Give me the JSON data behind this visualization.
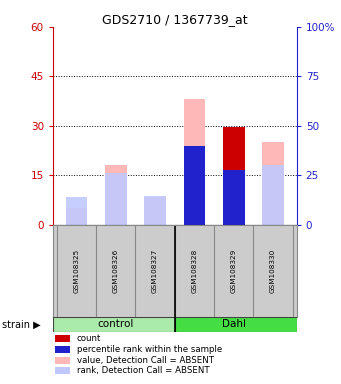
{
  "title": "GDS2710 / 1367739_at",
  "samples": [
    "GSM108325",
    "GSM108326",
    "GSM108327",
    "GSM108328",
    "GSM108329",
    "GSM108330"
  ],
  "groups": [
    "control",
    "control",
    "control",
    "Dahl",
    "Dahl",
    "Dahl"
  ],
  "group_labels": [
    "control",
    "Dahl"
  ],
  "group_colors": [
    "#aaeaaa",
    "#44dd44"
  ],
  "ylim_left": [
    0,
    60
  ],
  "ylim_right": [
    0,
    100
  ],
  "yticks_left": [
    0,
    15,
    30,
    45,
    60
  ],
  "yticks_right": [
    0,
    25,
    50,
    75,
    100
  ],
  "yticklabels_left": [
    "0",
    "15",
    "30",
    "45",
    "60"
  ],
  "yticklabels_right": [
    "0",
    "25",
    "50",
    "75",
    "100%"
  ],
  "value_absent": [
    5.0,
    18.0,
    8.5,
    38.0,
    29.5,
    25.0
  ],
  "rank_absent_pct": [
    14.0,
    26.0,
    14.5,
    40.0,
    27.5,
    30.0
  ],
  "count_present": [
    0,
    0,
    0,
    0,
    29.5,
    0
  ],
  "percentile_present_pct": [
    0,
    0,
    0,
    40.0,
    27.5,
    0
  ],
  "color_value_absent": "#ffb8b8",
  "color_rank_absent": "#c0c8ff",
  "color_count": "#cc0000",
  "color_percentile": "#2222cc",
  "legend_items": [
    {
      "color": "#cc0000",
      "label": "count"
    },
    {
      "color": "#2222cc",
      "label": "percentile rank within the sample"
    },
    {
      "color": "#ffb8b8",
      "label": "value, Detection Call = ABSENT"
    },
    {
      "color": "#c0c8ff",
      "label": "rank, Detection Call = ABSENT"
    }
  ],
  "background_color": "#ffffff",
  "plot_bg": "#ffffff",
  "left_axis_color": "#cc0000",
  "right_axis_color": "#2222cc",
  "bar_width": 0.55
}
